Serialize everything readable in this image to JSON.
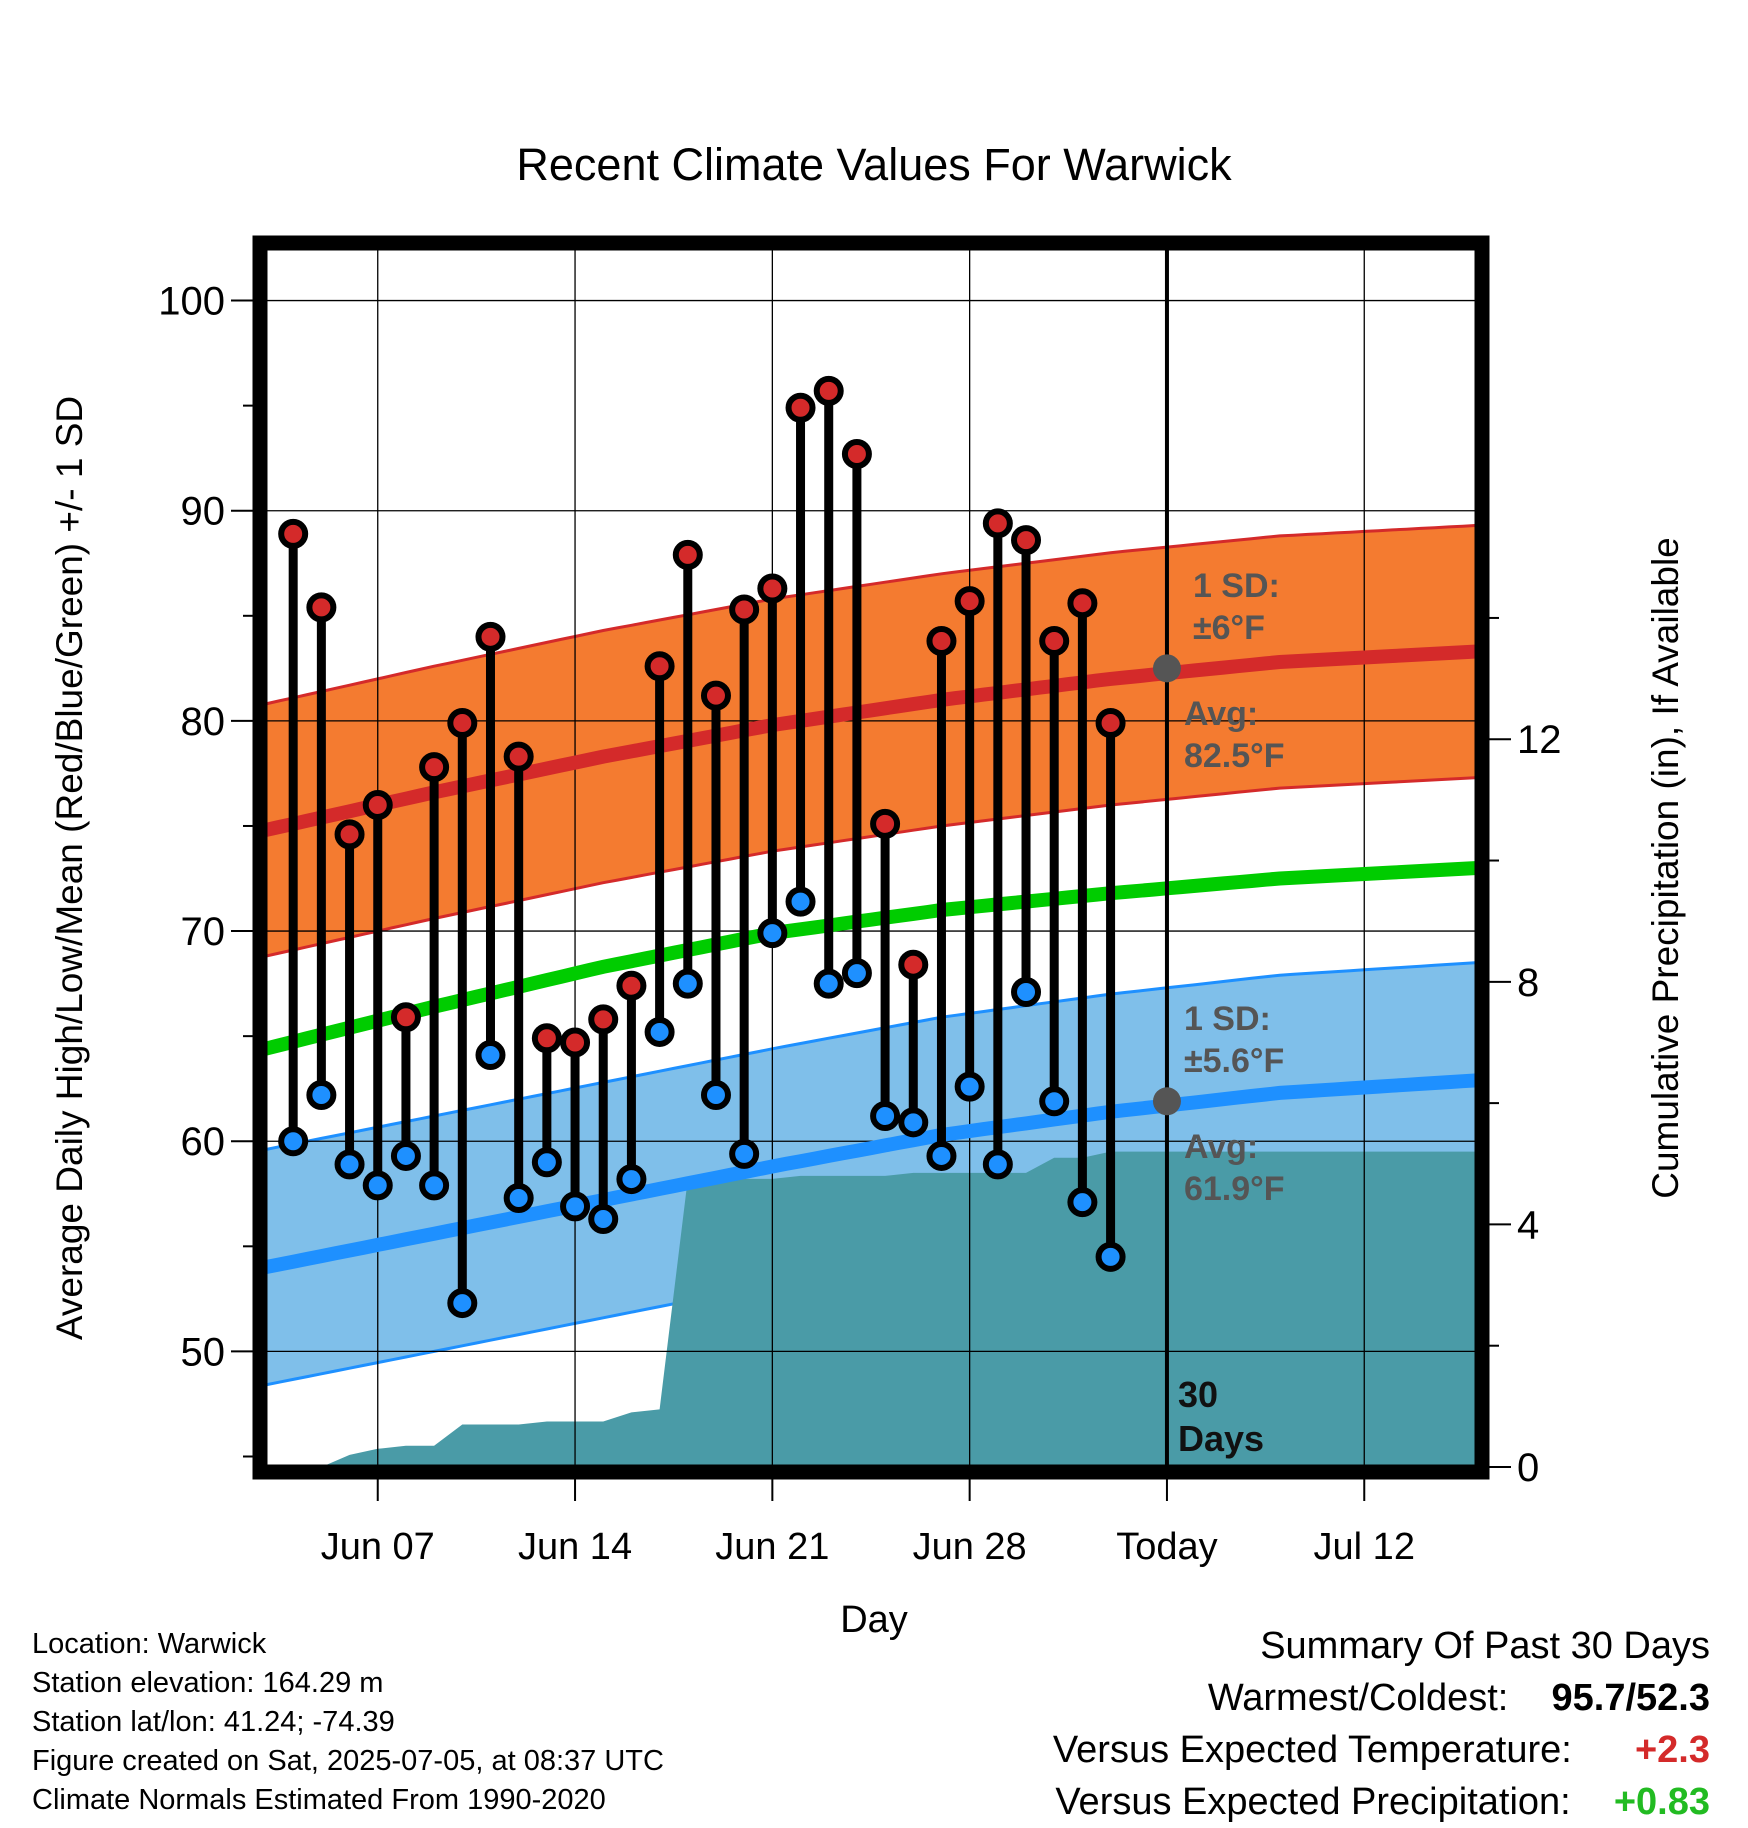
{
  "chart_data": {
    "type": "line",
    "title": "Recent Climate Values For Warwick",
    "xlabel": "Day",
    "ylabel": "Average Daily High/Low/Mean (Red/Blue/Green) +/- 1 SD",
    "y2label": "Cumulative Precipitation (in), If Available",
    "ylim": [
      44.5,
      102.5
    ],
    "y_ticks": [
      "50",
      "60",
      "70",
      "80",
      "90",
      "100"
    ],
    "y2lim": [
      0,
      20.1
    ],
    "y2_ticks": [
      "0",
      "4",
      "8",
      "12"
    ],
    "x_range": [
      "2025-06-03",
      "2025-07-16"
    ],
    "x_ticks": [
      {
        "date": "2025-06-07",
        "label": "Jun 07"
      },
      {
        "date": "2025-06-14",
        "label": "Jun 14"
      },
      {
        "date": "2025-06-21",
        "label": "Jun 21"
      },
      {
        "date": "2025-06-28",
        "label": "Jun 28"
      },
      {
        "date": "2025-07-05",
        "label": "Today"
      },
      {
        "date": "2025-07-12",
        "label": "Jul 12"
      }
    ],
    "grid": true,
    "colors": {
      "high": "#d42a2a",
      "low": "#1e90ff",
      "mean": "#00cc00",
      "high_band": "#f47b30",
      "low_band": "#7fbfea",
      "precip": "#4a9ba7",
      "annotation": "#555555"
    },
    "normals": {
      "x": [
        "2025-06-03",
        "2025-06-09",
        "2025-06-15",
        "2025-06-21",
        "2025-06-27",
        "2025-07-03",
        "2025-07-09",
        "2025-07-16"
      ],
      "high_avg": [
        74.8,
        76.6,
        78.3,
        79.8,
        81.0,
        82.0,
        82.8,
        83.3
      ],
      "high_sd": 6,
      "low_avg": [
        54.0,
        55.6,
        57.2,
        58.8,
        60.3,
        61.4,
        62.3,
        62.9
      ],
      "low_sd": 5.6,
      "mean_avg": [
        64.4,
        66.4,
        68.3,
        69.9,
        71.0,
        71.8,
        72.5,
        73.0
      ]
    },
    "series": [
      {
        "name": "High",
        "x": [
          "2025-06-04",
          "2025-06-05",
          "2025-06-06",
          "2025-06-07",
          "2025-06-08",
          "2025-06-09",
          "2025-06-10",
          "2025-06-11",
          "2025-06-12",
          "2025-06-13",
          "2025-06-14",
          "2025-06-15",
          "2025-06-16",
          "2025-06-17",
          "2025-06-18",
          "2025-06-19",
          "2025-06-20",
          "2025-06-21",
          "2025-06-22",
          "2025-06-23",
          "2025-06-24",
          "2025-06-25",
          "2025-06-26",
          "2025-06-27",
          "2025-06-28",
          "2025-06-29",
          "2025-06-30",
          "2025-07-01",
          "2025-07-02",
          "2025-07-03",
          "2025-07-04"
        ],
        "values": [
          88.9,
          85.4,
          74.6,
          76.0,
          65.9,
          77.8,
          79.9,
          84.0,
          78.3,
          64.9,
          64.7,
          65.8,
          67.4,
          82.6,
          87.9,
          81.2,
          85.3,
          86.3,
          94.9,
          95.7,
          92.7,
          75.1,
          68.4,
          83.8,
          85.7,
          89.4,
          88.6,
          83.8,
          85.6,
          79.9,
          null
        ]
      },
      {
        "name": "Low",
        "x": [
          "2025-06-04",
          "2025-06-05",
          "2025-06-06",
          "2025-06-07",
          "2025-06-08",
          "2025-06-09",
          "2025-06-10",
          "2025-06-11",
          "2025-06-12",
          "2025-06-13",
          "2025-06-14",
          "2025-06-15",
          "2025-06-16",
          "2025-06-17",
          "2025-06-18",
          "2025-06-19",
          "2025-06-20",
          "2025-06-21",
          "2025-06-22",
          "2025-06-23",
          "2025-06-24",
          "2025-06-25",
          "2025-06-26",
          "2025-06-27",
          "2025-06-28",
          "2025-06-29",
          "2025-06-30",
          "2025-07-01",
          "2025-07-02",
          "2025-07-03",
          "2025-07-04"
        ],
        "values": [
          60.0,
          62.2,
          58.9,
          57.9,
          59.3,
          57.9,
          52.3,
          64.1,
          57.3,
          59.0,
          56.9,
          56.3,
          58.2,
          65.2,
          67.5,
          62.2,
          59.4,
          69.9,
          71.4,
          67.5,
          68.0,
          61.2,
          60.9,
          59.3,
          62.6,
          58.9,
          67.1,
          61.9,
          57.1,
          54.5,
          null
        ]
      },
      {
        "name": "Cumulative Precipitation",
        "x": [
          "2025-06-03",
          "2025-06-04",
          "2025-06-05",
          "2025-06-06",
          "2025-06-07",
          "2025-06-08",
          "2025-06-09",
          "2025-06-10",
          "2025-06-11",
          "2025-06-12",
          "2025-06-13",
          "2025-06-14",
          "2025-06-15",
          "2025-06-16",
          "2025-06-17",
          "2025-06-18",
          "2025-06-19",
          "2025-06-20",
          "2025-06-21",
          "2025-06-22",
          "2025-06-23",
          "2025-06-24",
          "2025-06-25",
          "2025-06-26",
          "2025-06-27",
          "2025-06-28",
          "2025-06-29",
          "2025-06-30",
          "2025-07-01",
          "2025-07-02",
          "2025-07-03",
          "2025-07-04",
          "2025-07-05",
          "2025-07-06",
          "2025-07-08",
          "2025-07-10",
          "2025-07-12",
          "2025-07-14",
          "2025-07-16"
        ],
        "values": [
          0,
          0,
          0,
          0.2,
          0.3,
          0.35,
          0.35,
          0.7,
          0.7,
          0.7,
          0.75,
          0.75,
          0.75,
          0.9,
          0.95,
          4.75,
          4.75,
          4.75,
          4.75,
          4.8,
          4.8,
          4.8,
          4.8,
          4.85,
          4.85,
          4.85,
          4.85,
          4.85,
          5.1,
          5.1,
          5.2,
          5.2,
          5.2,
          5.2,
          5.2,
          5.2,
          5.2,
          5.2,
          5.2
        ]
      }
    ],
    "annotations": {
      "high_sd_label": [
        "1 SD:",
        "±6°F"
      ],
      "high_avg_label": [
        "Avg:",
        "82.5°F"
      ],
      "low_sd_label": [
        "1 SD:",
        "±5.6°F"
      ],
      "low_avg_label": [
        "Avg:",
        "61.9°F"
      ],
      "today_high_avg": 82.5,
      "today_low_avg": 61.9,
      "period_label": [
        "30",
        "Days"
      ]
    }
  },
  "info": {
    "location": "Location: Warwick",
    "elevation": "Station elevation: 164.29 m",
    "latlon": "Station lat/lon: 41.24; -74.39",
    "created": "Figure created on Sat, 2025-07-05, at 08:37 UTC",
    "normals": "Climate Normals Estimated From 1990-2020"
  },
  "summary": {
    "heading": "Summary Of Past 30 Days",
    "warmest_label": "Warmest/Coldest:",
    "warmest_high": "95.7",
    "warmest_sep": "/",
    "warmest_low": "52.3",
    "temp_label": "Versus Expected Temperature:",
    "temp_value": "+2.3",
    "temp_color": "#d42a2a",
    "precip_label": "Versus Expected Precipitation:",
    "precip_value": "+0.83",
    "precip_color": "#22bb22"
  }
}
